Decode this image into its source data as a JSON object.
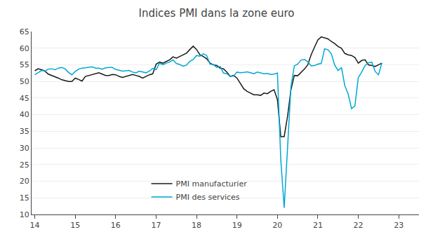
{
  "chart_data": {
    "type": "line",
    "title": "Indices PMI dans la zone euro",
    "x": [
      14,
      14.083333333333332,
      14.166666666666668,
      14.25,
      14.333333333333332,
      14.416666666666668,
      14.5,
      14.583333333333332,
      14.666666666666668,
      14.75,
      14.833333333333332,
      14.916666666666668,
      15,
      15.083333333333332,
      15.166666666666668,
      15.25,
      15.333333333333332,
      15.416666666666668,
      15.5,
      15.583333333333332,
      15.666666666666668,
      15.75,
      15.833333333333332,
      15.916666666666668,
      16,
      16.083333333333332,
      16.166666666666668,
      16.25,
      16.333333333333332,
      16.416666666666668,
      16.5,
      16.583333333333332,
      16.666666666666668,
      16.75,
      16.833333333333332,
      16.916666666666668,
      17,
      17.083333333333332,
      17.166666666666668,
      17.25,
      17.333333333333332,
      17.416666666666668,
      17.5,
      17.583333333333332,
      17.666666666666668,
      17.75,
      17.833333333333332,
      17.916666666666668,
      18,
      18.083333333333332,
      18.166666666666668,
      18.25,
      18.333333333333332,
      18.416666666666668,
      18.5,
      18.583333333333332,
      18.666666666666668,
      18.75,
      18.833333333333332,
      18.916666666666668,
      19,
      19.083333333333332,
      19.166666666666668,
      19.25,
      19.333333333333332,
      19.416666666666668,
      19.5,
      19.583333333333332,
      19.666666666666668,
      19.75,
      19.833333333333332,
      19.916666666666668,
      20,
      20.083333333333332,
      20.166666666666668,
      20.25,
      20.333333333333332,
      20.416666666666668,
      20.5,
      20.583333333333332,
      20.666666666666668,
      20.75,
      20.833333333333332,
      20.916666666666668,
      21,
      21.083333333333332,
      21.166666666666668,
      21.25,
      21.333333333333332,
      21.416666666666668,
      21.5,
      21.583333333333332,
      21.666666666666668,
      21.75,
      21.833333333333332,
      21.916666666666668,
      22,
      22.083333333333332,
      22.166666666666668,
      22.25,
      22.333333333333332,
      22.416666666666668,
      22.5,
      22.583333333333332
    ],
    "series": [
      {
        "name": "PMI manufacturier",
        "color": "#1a1a1a",
        "values": [
          53.2,
          53.8,
          53.5,
          53.1,
          52.2,
          51.8,
          51.5,
          51.0,
          50.5,
          50.3,
          50.0,
          50.0,
          51.0,
          50.6,
          50.1,
          51.5,
          51.8,
          52.0,
          52.3,
          52.6,
          52.2,
          51.8,
          51.8,
          52.1,
          52.0,
          51.5,
          51.2,
          51.5,
          51.9,
          52.1,
          51.8,
          51.5,
          51.0,
          51.5,
          52.0,
          52.3,
          55.2,
          55.8,
          55.5,
          56.0,
          56.5,
          57.4,
          57.0,
          57.5,
          58.0,
          58.5,
          59.6,
          60.6,
          59.6,
          58.0,
          57.5,
          56.8,
          55.5,
          55.0,
          54.8,
          54.0,
          53.8,
          52.8,
          51.5,
          51.8,
          51.0,
          49.5,
          47.8,
          47.0,
          46.5,
          46.0,
          46.0,
          45.8,
          46.5,
          46.3,
          47.0,
          47.5,
          44.5,
          33.4,
          33.4,
          39.5,
          47.4,
          51.8,
          51.7,
          52.7,
          53.7,
          55.0,
          58.0,
          60.3,
          62.5,
          63.4,
          63.1,
          62.8,
          62.0,
          61.4,
          60.5,
          60.0,
          58.4,
          58.0,
          57.8,
          57.2,
          55.5,
          56.3,
          56.5,
          55.0,
          54.8,
          54.5,
          55.0,
          55.5
        ]
      },
      {
        "name": "PMI des services",
        "color": "#00a8d4",
        "values": [
          52.0,
          52.7,
          53.3,
          53.1,
          53.7,
          53.8,
          53.5,
          54.0,
          54.2,
          53.8,
          52.7,
          52.0,
          53.0,
          53.7,
          54.0,
          54.1,
          54.2,
          54.4,
          54.0,
          54.0,
          53.7,
          54.1,
          54.2,
          54.2,
          53.6,
          53.3,
          53.1,
          53.2,
          53.3,
          52.8,
          52.6,
          53.1,
          52.8,
          52.6,
          53.1,
          53.9,
          53.5,
          55.5,
          55.0,
          55.5,
          55.8,
          56.5,
          55.4,
          55.1,
          54.6,
          54.9,
          56.0,
          56.6,
          57.8,
          57.6,
          58.3,
          57.8,
          55.2,
          55.1,
          54.2,
          54.5,
          52.5,
          52.3,
          51.5,
          51.6,
          52.8,
          52.6,
          52.7,
          52.9,
          52.6,
          52.3,
          52.8,
          52.5,
          52.3,
          52.4,
          52.1,
          52.2,
          52.5,
          26.4,
          12.0,
          30.0,
          48.3,
          54.7,
          55.2,
          56.4,
          56.6,
          55.9,
          54.7,
          54.8,
          55.2,
          55.4,
          59.8,
          59.5,
          58.3,
          54.9,
          53.3,
          54.2,
          48.7,
          46.2,
          41.8,
          42.7,
          51.2,
          52.8,
          54.8,
          55.6,
          55.8,
          53.0,
          52.0,
          55.6
        ]
      }
    ],
    "xlim": [
      13.92,
      23.5
    ],
    "xticks": [
      14,
      15,
      16,
      17,
      18,
      19,
      20,
      21,
      22,
      23
    ],
    "ylim": [
      10,
      65
    ],
    "yticks": [
      10,
      15,
      20,
      25,
      30,
      35,
      40,
      45,
      50,
      55,
      60,
      65
    ],
    "grid": "y",
    "legend": "bottom"
  }
}
